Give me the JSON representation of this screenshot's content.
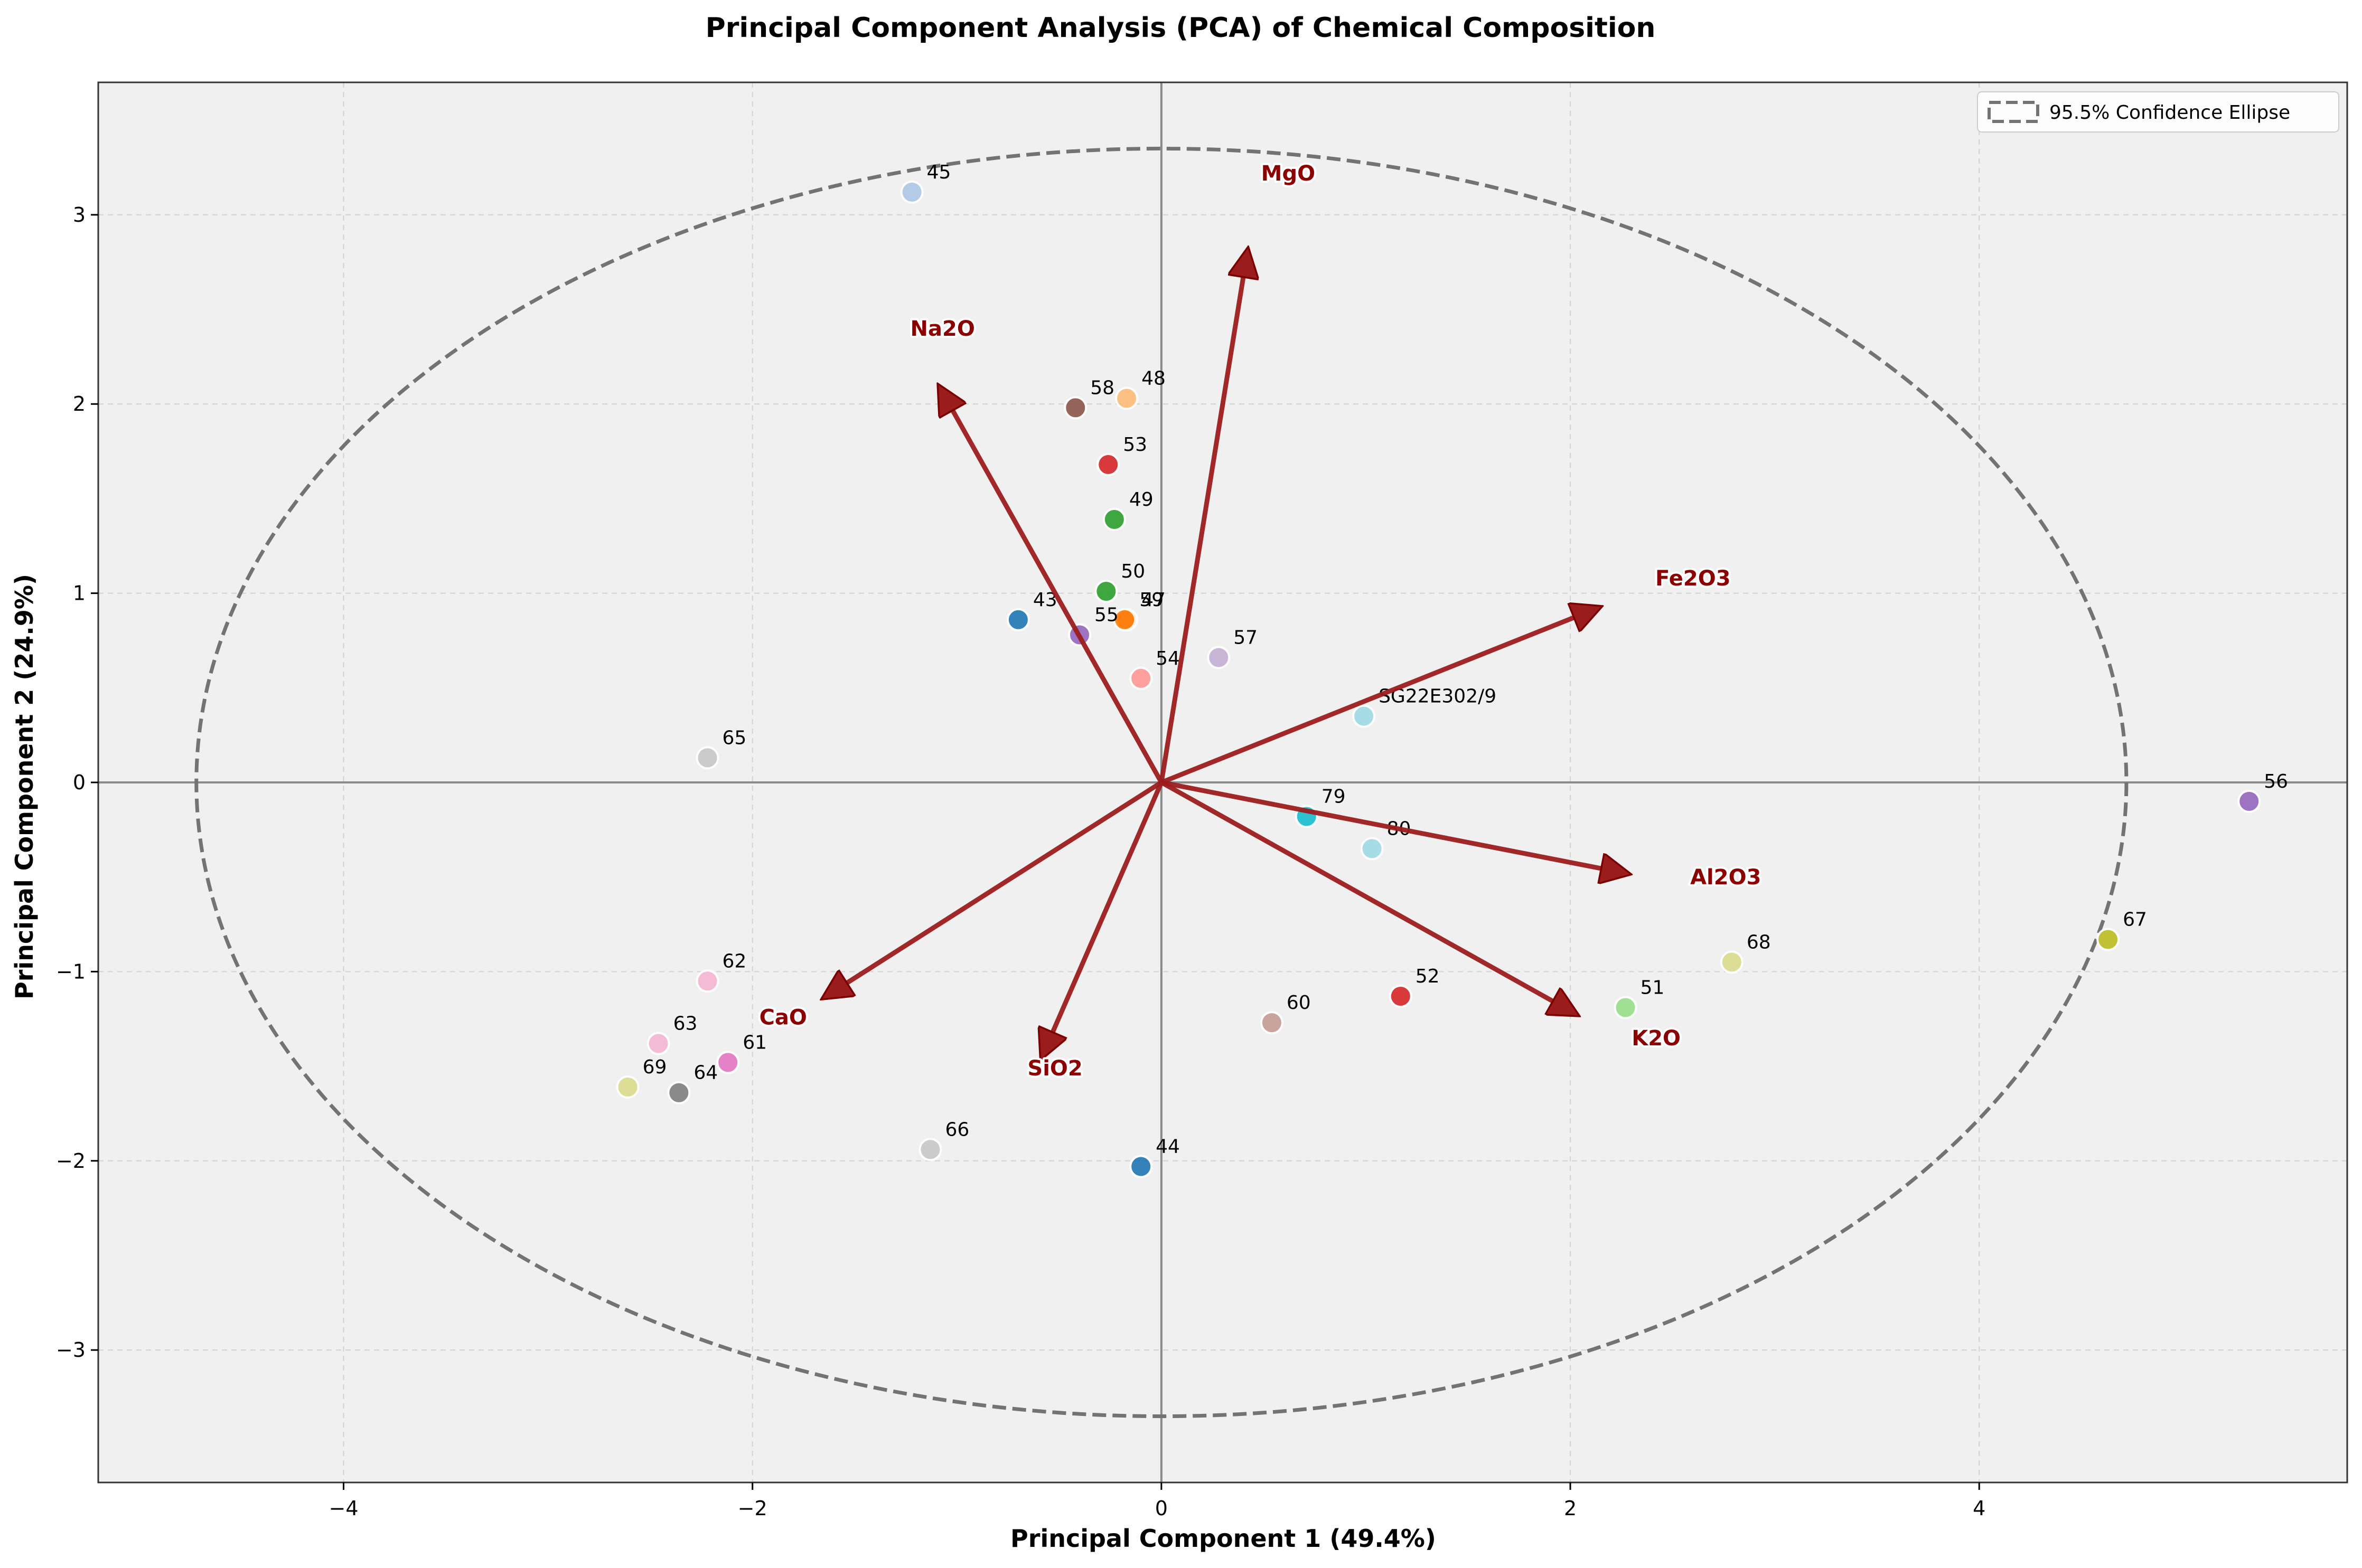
{
  "chart_data": {
    "type": "scatter",
    "title": "Principal Component Analysis (PCA) of Chemical Composition",
    "xlabel": "Principal Component 1 (49.4%)",
    "ylabel": "Principal Component 2 (24.9%)",
    "xlim": [
      -5.2,
      5.8
    ],
    "ylim": [
      -3.7,
      3.7
    ],
    "xticks": [
      -4,
      -2,
      0,
      2,
      4
    ],
    "yticks": [
      -3,
      -2,
      -1,
      0,
      1,
      2,
      3
    ],
    "xtick_labels": [
      "−4",
      "−2",
      "0",
      "2",
      "4"
    ],
    "ytick_labels": [
      "−3",
      "−2",
      "−1",
      "0",
      "1",
      "2",
      "3"
    ],
    "grid": true,
    "legend_position": "top-right",
    "legend_label": "95.5% Confidence Ellipse",
    "ellipse": {
      "cx": 0,
      "cy": 0,
      "rx": 4.72,
      "ry": 3.35
    },
    "points": [
      {
        "label": "43",
        "x": -0.7,
        "y": 0.86,
        "color": "#1f77b4"
      },
      {
        "label": "44",
        "x": -0.1,
        "y": -2.03,
        "color": "#1f77b4"
      },
      {
        "label": "45",
        "x": -1.22,
        "y": 3.12,
        "color": "#aec7e8"
      },
      {
        "label": "47",
        "x": -0.17,
        "y": 0.86,
        "color": "#ff7f0e"
      },
      {
        "label": "48",
        "x": -0.17,
        "y": 2.03,
        "color": "#ffbb78"
      },
      {
        "label": "49",
        "x": -0.23,
        "y": 1.39,
        "color": "#2ca02c"
      },
      {
        "label": "50",
        "x": -0.27,
        "y": 1.01,
        "color": "#2ca02c"
      },
      {
        "label": "51",
        "x": 2.27,
        "y": -1.19,
        "color": "#98df8a"
      },
      {
        "label": "52",
        "x": 1.17,
        "y": -1.13,
        "color": "#d62728"
      },
      {
        "label": "53",
        "x": -0.26,
        "y": 1.68,
        "color": "#d62728"
      },
      {
        "label": "54",
        "x": -0.1,
        "y": 0.55,
        "color": "#ff9896"
      },
      {
        "label": "55",
        "x": -0.4,
        "y": 0.78,
        "color": "#9467bd"
      },
      {
        "label": "56",
        "x": 5.32,
        "y": -0.1,
        "color": "#9467bd"
      },
      {
        "label": "57",
        "x": 0.28,
        "y": 0.66,
        "color": "#c5b0d5"
      },
      {
        "label": "58",
        "x": -0.42,
        "y": 1.98,
        "color": "#8c564b"
      },
      {
        "label": "59",
        "x": -0.18,
        "y": 0.86,
        "color": "#ff7f0e"
      },
      {
        "label": "60",
        "x": 0.54,
        "y": -1.27,
        "color": "#c49c94"
      },
      {
        "label": "61",
        "x": -2.12,
        "y": -1.48,
        "color": "#e377c2"
      },
      {
        "label": "62",
        "x": -2.22,
        "y": -1.05,
        "color": "#f7b6d2"
      },
      {
        "label": "63",
        "x": -2.46,
        "y": -1.38,
        "color": "#f7b6d2"
      },
      {
        "label": "64",
        "x": -2.36,
        "y": -1.64,
        "color": "#7f7f7f"
      },
      {
        "label": "65",
        "x": -2.22,
        "y": 0.13,
        "color": "#c7c7c7"
      },
      {
        "label": "66",
        "x": -1.13,
        "y": -1.94,
        "color": "#c7c7c7"
      },
      {
        "label": "67",
        "x": 4.63,
        "y": -0.83,
        "color": "#bcbd22"
      },
      {
        "label": "68",
        "x": 2.79,
        "y": -0.95,
        "color": "#dbdb8d"
      },
      {
        "label": "69",
        "x": -2.61,
        "y": -1.61,
        "color": "#dbdb8d"
      },
      {
        "label": "79",
        "x": 0.71,
        "y": -0.18,
        "color": "#17becf"
      },
      {
        "label": "80",
        "x": 1.03,
        "y": -0.35,
        "color": "#9edae5"
      },
      {
        "label": "SG22E302/9",
        "x": 0.99,
        "y": 0.35,
        "color": "#9edae5"
      }
    ],
    "loadings": [
      {
        "name": "MgO",
        "x": 0.42,
        "y": 2.8,
        "label_x": 0.62,
        "label_y": 3.22
      },
      {
        "name": "Na2O",
        "x": -1.08,
        "y": 2.08,
        "label_x": -1.07,
        "label_y": 2.4
      },
      {
        "name": "Fe2O3",
        "x": 2.13,
        "y": 0.92,
        "label_x": 2.6,
        "label_y": 1.08
      },
      {
        "name": "Al2O3",
        "x": 2.27,
        "y": -0.48,
        "label_x": 2.76,
        "label_y": -0.5
      },
      {
        "name": "K2O",
        "x": 2.02,
        "y": -1.22,
        "label_x": 2.42,
        "label_y": -1.35
      },
      {
        "name": "CaO",
        "x": -1.64,
        "y": -1.13,
        "label_x": -1.85,
        "label_y": -1.24
      },
      {
        "name": "SiO2",
        "x": -0.58,
        "y": -1.44,
        "label_x": -0.52,
        "label_y": -1.51
      }
    ]
  }
}
